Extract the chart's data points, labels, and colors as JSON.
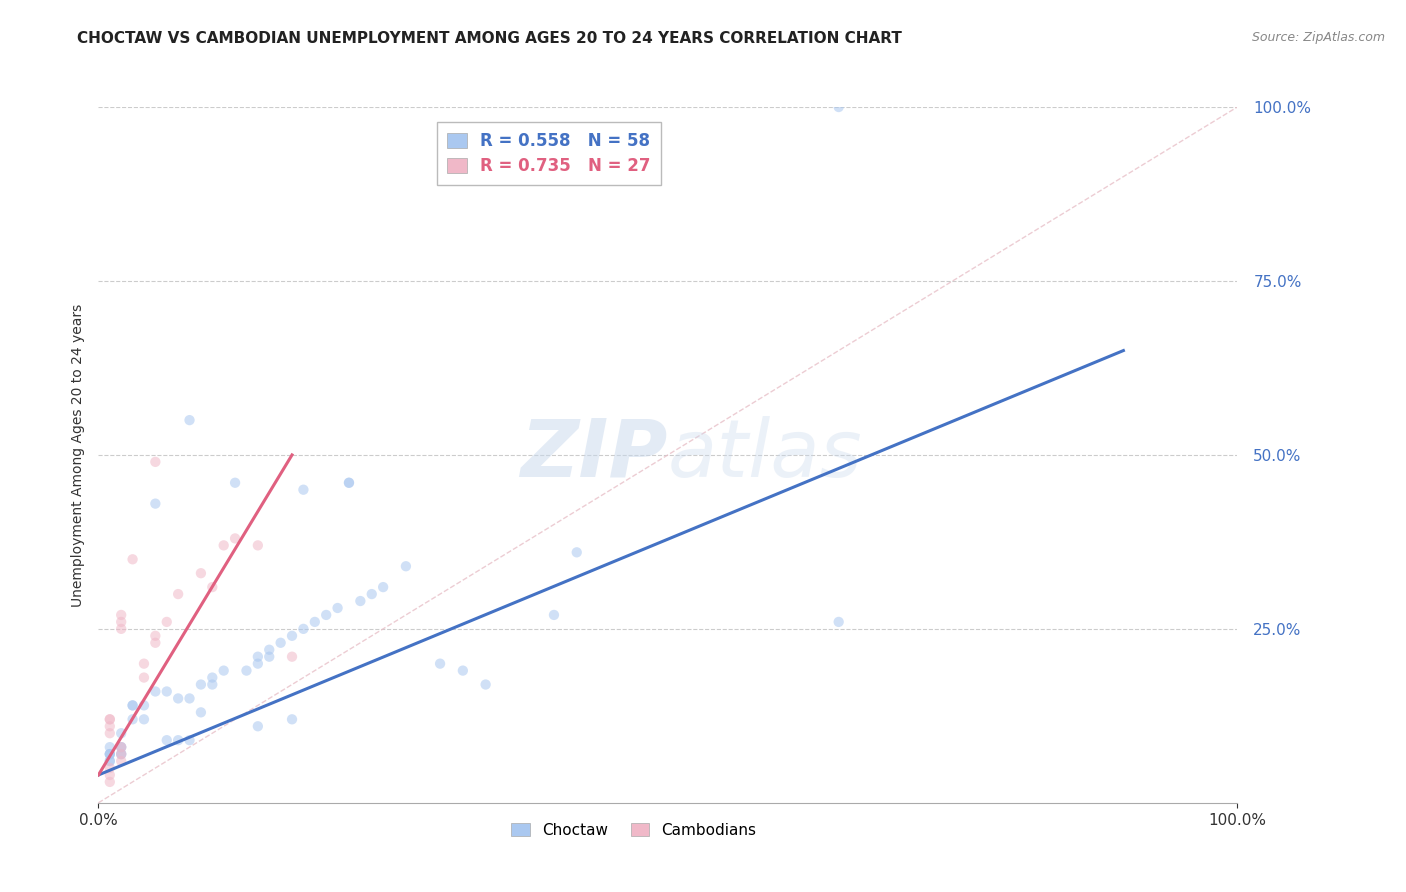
{
  "title": "CHOCTAW VS CAMBODIAN UNEMPLOYMENT AMONG AGES 20 TO 24 YEARS CORRELATION CHART",
  "source": "Source: ZipAtlas.com",
  "ylabel": "Unemployment Among Ages 20 to 24 years",
  "xlim": [
    0,
    1.0
  ],
  "ylim": [
    0,
    1.0
  ],
  "xtick_labels": [
    "0.0%",
    "100.0%"
  ],
  "xtick_positions": [
    0.0,
    1.0
  ],
  "ytick_labels": [
    "25.0%",
    "50.0%",
    "75.0%",
    "100.0%"
  ],
  "ytick_positions": [
    0.25,
    0.5,
    0.75,
    1.0
  ],
  "ytick_color": "#4472c4",
  "watermark_zip": "ZIP",
  "watermark_atlas": "atlas",
  "legend_label1": "R = 0.558   N = 58",
  "legend_label2": "R = 0.735   N = 27",
  "choctaw_scatter_x": [
    0.08,
    0.05,
    0.12,
    0.18,
    0.22,
    0.22,
    0.02,
    0.03,
    0.04,
    0.01,
    0.01,
    0.01,
    0.02,
    0.02,
    0.03,
    0.03,
    0.04,
    0.05,
    0.06,
    0.07,
    0.08,
    0.09,
    0.1,
    0.1,
    0.11,
    0.13,
    0.14,
    0.14,
    0.15,
    0.15,
    0.16,
    0.17,
    0.18,
    0.19,
    0.2,
    0.21,
    0.23,
    0.24,
    0.25,
    0.27,
    0.3,
    0.32,
    0.34,
    0.4,
    0.42,
    0.65,
    0.65,
    0.02,
    0.01,
    0.01,
    0.01,
    0.02,
    0.06,
    0.07,
    0.08,
    0.09,
    0.14,
    0.17
  ],
  "choctaw_scatter_y": [
    0.55,
    0.43,
    0.46,
    0.45,
    0.46,
    0.46,
    0.1,
    0.12,
    0.12,
    0.06,
    0.06,
    0.07,
    0.07,
    0.08,
    0.14,
    0.14,
    0.14,
    0.16,
    0.16,
    0.15,
    0.15,
    0.17,
    0.17,
    0.18,
    0.19,
    0.19,
    0.2,
    0.21,
    0.21,
    0.22,
    0.23,
    0.24,
    0.25,
    0.26,
    0.27,
    0.28,
    0.29,
    0.3,
    0.31,
    0.34,
    0.2,
    0.19,
    0.17,
    0.27,
    0.36,
    0.26,
    1.0,
    0.07,
    0.07,
    0.07,
    0.08,
    0.08,
    0.09,
    0.09,
    0.09,
    0.13,
    0.11,
    0.12
  ],
  "cambodian_scatter_x": [
    0.01,
    0.01,
    0.01,
    0.01,
    0.02,
    0.02,
    0.02,
    0.03,
    0.04,
    0.04,
    0.05,
    0.05,
    0.05,
    0.01,
    0.01,
    0.01,
    0.02,
    0.02,
    0.02,
    0.06,
    0.07,
    0.09,
    0.1,
    0.11,
    0.12,
    0.14,
    0.17
  ],
  "cambodian_scatter_y": [
    0.1,
    0.11,
    0.12,
    0.12,
    0.25,
    0.26,
    0.27,
    0.35,
    0.18,
    0.2,
    0.23,
    0.24,
    0.49,
    0.03,
    0.04,
    0.05,
    0.06,
    0.07,
    0.08,
    0.26,
    0.3,
    0.33,
    0.31,
    0.37,
    0.38,
    0.37,
    0.21
  ],
  "choctaw_line_x": [
    0.0,
    0.9
  ],
  "choctaw_line_y": [
    0.04,
    0.65
  ],
  "cambodian_line_x": [
    0.0,
    0.17
  ],
  "cambodian_line_y": [
    0.04,
    0.5
  ],
  "diagonal_line_x": [
    0.0,
    1.0
  ],
  "diagonal_line_y": [
    0.0,
    1.0
  ],
  "choctaw_color": "#aac8f0",
  "cambodian_color": "#f0b8c8",
  "choctaw_line_color": "#4472c4",
  "cambodian_line_color": "#e06080",
  "diagonal_color": "#e8c0c8",
  "background_color": "#ffffff",
  "grid_color": "#cccccc",
  "title_fontsize": 11,
  "label_fontsize": 10,
  "tick_fontsize": 11,
  "scatter_size": 55,
  "scatter_alpha": 0.55
}
